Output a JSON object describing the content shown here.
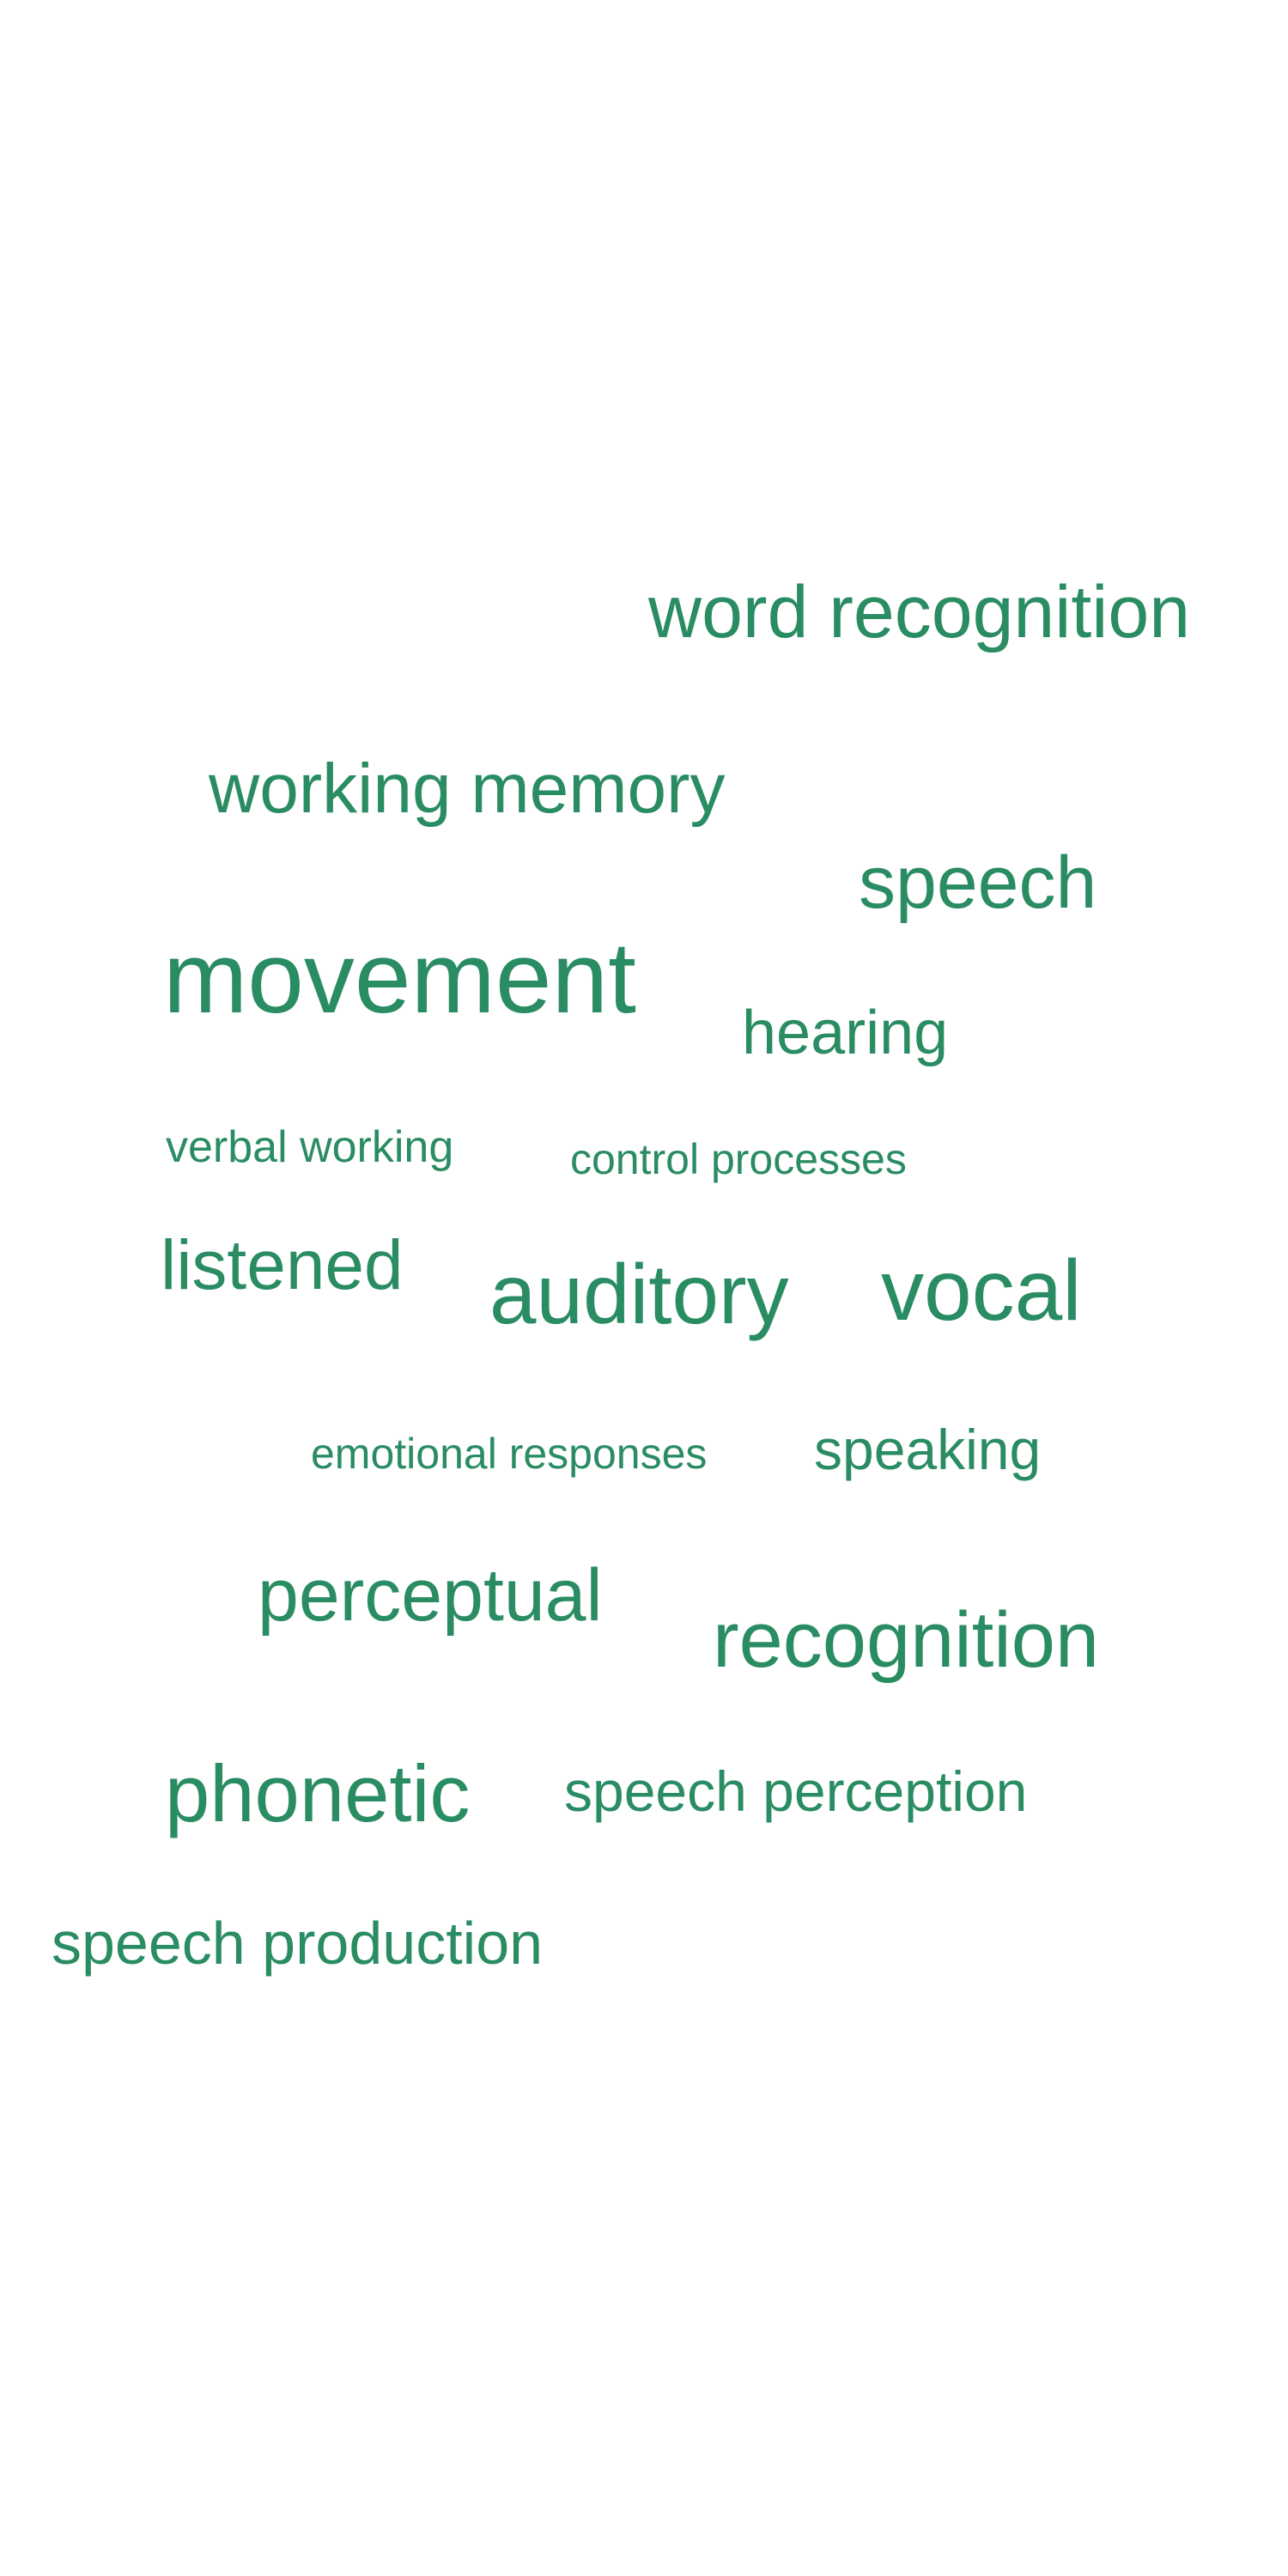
{
  "colors": {
    "background": "#ffffff",
    "word": "#2a8c63"
  },
  "words": [
    "word recognition",
    "working memory",
    "speech",
    "movement",
    "hearing",
    "verbal working",
    "control processes",
    "listened",
    "auditory",
    "vocal",
    "emotional responses",
    "speaking",
    "perceptual",
    "recognition",
    "phonetic",
    "speech perception",
    "speech production"
  ]
}
